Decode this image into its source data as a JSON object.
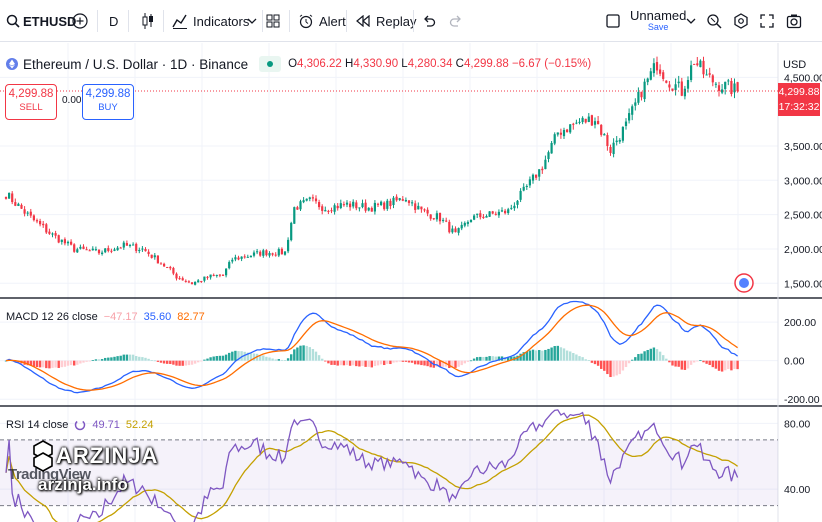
{
  "toolbar": {
    "symbol": "ETHUSD",
    "interval": "D",
    "indicators_label": "Indicators",
    "alert_label": "Alert",
    "replay_label": "Replay",
    "layout_name": "Unnamed",
    "layout_status": "Save"
  },
  "legend": {
    "title": "Ethereum / U.S. Dollar · 1D · Binance",
    "open": "4,306.22",
    "high": "4,330.90",
    "low": "4,280.34",
    "close": "4,299.88",
    "change": "−6.67 (−0.15%)",
    "open_label": "O",
    "high_label": "H",
    "low_label": "L",
    "close_label": "C"
  },
  "trade": {
    "sell_price": "4,299.88",
    "sell_label": "SELL",
    "spread": "0.00",
    "buy_price": "4,299.88",
    "buy_label": "BUY"
  },
  "price_tag": {
    "price": "4,299.88",
    "countdown": "17:32:32"
  },
  "currency": "USD",
  "macd": {
    "label": "MACD 12 26 close",
    "hist": "−47.17",
    "macd": "35.60",
    "signal": "82.77"
  },
  "rsi": {
    "label": "RSI 14 close",
    "value": "49.71",
    "ma": "52.24"
  },
  "watermark": {
    "brand": "ARZINJA",
    "site": "arzinja.info",
    "tv_logo": "TradingView"
  },
  "colors": {
    "up": "#089981",
    "down": "#f23645",
    "macd": "#2962ff",
    "signal": "#ff6d00",
    "rsi": "#7e57c2",
    "rsi_ma": "#c4a000",
    "grid": "#f0f3fa",
    "text": "#131722"
  },
  "chart_data": [
    {
      "type": "candlestick",
      "title": "Ethereum / U.S. Dollar · 1D · Binance",
      "ylim": [
        1300,
        5000
      ],
      "y_ticks": [
        "4,500.00",
        "3,500.00",
        "3,000.00",
        "2,500.00",
        "2,000.00",
        "1,500.00"
      ],
      "y_tick_values": [
        4500,
        3500,
        3000,
        2500,
        2000,
        1500
      ],
      "last_price": 4299.88,
      "close_path": [
        [
          0,
          2800
        ],
        [
          8,
          2450
        ],
        [
          15,
          2200
        ],
        [
          22,
          2000
        ],
        [
          30,
          1950
        ],
        [
          38,
          2050
        ],
        [
          44,
          2000
        ],
        [
          50,
          1800
        ],
        [
          55,
          1600
        ],
        [
          60,
          1500
        ],
        [
          66,
          1600
        ],
        [
          70,
          1620
        ],
        [
          73,
          1850
        ],
        [
          78,
          1900
        ],
        [
          83,
          1950
        ],
        [
          90,
          1950
        ],
        [
          93,
          2600
        ],
        [
          98,
          2700
        ],
        [
          103,
          2600
        ],
        [
          110,
          2650
        ],
        [
          117,
          2600
        ],
        [
          123,
          2650
        ],
        [
          129,
          2750
        ],
        [
          134,
          2550
        ],
        [
          140,
          2450
        ],
        [
          145,
          2200
        ],
        [
          150,
          2450
        ],
        [
          156,
          2500
        ],
        [
          162,
          2550
        ],
        [
          168,
          2900
        ],
        [
          173,
          3200
        ],
        [
          178,
          3700
        ],
        [
          185,
          3850
        ],
        [
          190,
          3900
        ],
        [
          195,
          3450
        ],
        [
          200,
          3800
        ],
        [
          205,
          4300
        ],
        [
          210,
          4700
        ],
        [
          214,
          4450
        ],
        [
          218,
          4300
        ],
        [
          222,
          4750
        ],
        [
          226,
          4500
        ],
        [
          230,
          4400
        ],
        [
          236,
          4300
        ]
      ]
    },
    {
      "type": "macd",
      "series": [
        {
          "name": "MACD",
          "role": "macd"
        },
        {
          "name": "Signal",
          "role": "signal"
        },
        {
          "name": "Histogram",
          "role": "hist"
        }
      ],
      "ylim": [
        -230,
        320
      ],
      "y_ticks": [
        "200.00",
        "0.00",
        "-200.00"
      ],
      "y_tick_values": [
        200,
        0,
        -200
      ],
      "last": {
        "hist": -47.17,
        "macd": 35.6,
        "signal": 82.77
      }
    },
    {
      "type": "line",
      "series": [
        {
          "name": "RSI",
          "role": "rsi"
        },
        {
          "name": "RSI MA",
          "role": "rsi_ma"
        }
      ],
      "ylim": [
        20,
        90
      ],
      "bands": [
        70,
        30
      ],
      "y_ticks": [
        "80.00",
        "40.00"
      ],
      "y_tick_values": [
        80,
        40
      ],
      "last": {
        "rsi": 49.71,
        "ma": 52.24
      }
    }
  ]
}
